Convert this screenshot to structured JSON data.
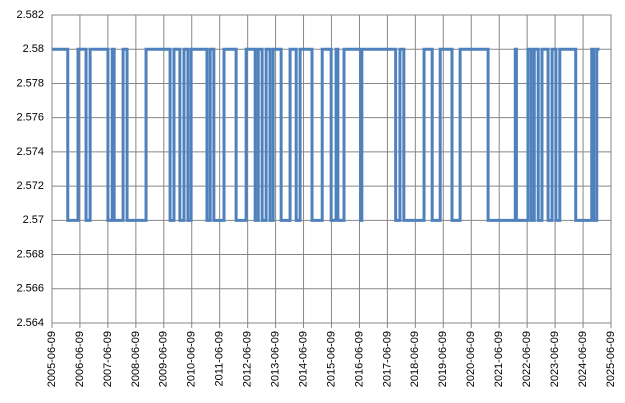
{
  "chart_data": {
    "type": "line",
    "color": "#4f81bd",
    "grid": true,
    "x": [
      "2005-06-09",
      "2006-01-01",
      "2006-01-01",
      "2006-05-15",
      "2006-05-15",
      "2006-08-28",
      "2006-08-28",
      "2006-10-20",
      "2006-10-20",
      "2007-06-10",
      "2007-06-10",
      "2007-08-05",
      "2007-08-05",
      "2007-08-30",
      "2007-08-30",
      "2007-12-25",
      "2007-12-25",
      "2008-02-15",
      "2008-02-15",
      "2008-10-20",
      "2008-10-20",
      "2009-08-30",
      "2009-08-30",
      "2009-10-20",
      "2009-10-20",
      "2010-01-05",
      "2010-01-05",
      "2010-02-28",
      "2010-02-28",
      "2010-04-20",
      "2010-04-20",
      "2010-06-01",
      "2010-06-01",
      "2010-12-25",
      "2010-12-25",
      "2011-02-05",
      "2011-02-05",
      "2011-03-25",
      "2011-03-25",
      "2011-08-05",
      "2011-08-05",
      "2012-01-10",
      "2012-01-10",
      "2012-05-20",
      "2012-05-20",
      "2012-09-15",
      "2012-09-15",
      "2012-10-25",
      "2012-10-25",
      "2012-12-15",
      "2012-12-15",
      "2013-02-05",
      "2013-02-05",
      "2013-03-28",
      "2013-03-28",
      "2013-05-08",
      "2013-05-08",
      "2013-08-20",
      "2013-08-20",
      "2013-12-15",
      "2013-12-15",
      "2014-03-05",
      "2014-03-05",
      "2014-04-25",
      "2014-04-25",
      "2014-09-28",
      "2014-09-28",
      "2015-02-08",
      "2015-02-08",
      "2015-06-05",
      "2015-06-05",
      "2015-08-08",
      "2015-08-08",
      "2015-09-01",
      "2015-09-01",
      "2015-11-20",
      "2015-11-20",
      "2016-06-25",
      "2016-06-25",
      "2016-07-10",
      "2016-07-10",
      "2017-09-25",
      "2017-09-25",
      "2017-11-20",
      "2017-11-20",
      "2018-01-10",
      "2018-01-10",
      "2018-10-01",
      "2018-10-01",
      "2019-01-15",
      "2019-01-15",
      "2019-04-30",
      "2019-04-30",
      "2019-10-01",
      "2019-10-01",
      "2020-01-15",
      "2020-01-15",
      "2021-01-15",
      "2021-01-15",
      "2022-01-05",
      "2022-01-05",
      "2022-01-20",
      "2022-01-20",
      "2022-06-20",
      "2022-06-20",
      "2022-08-01",
      "2022-08-01",
      "2022-09-10",
      "2022-09-10",
      "2022-11-01",
      "2022-11-01",
      "2022-12-20",
      "2022-12-20",
      "2023-03-10",
      "2023-03-10",
      "2023-05-01",
      "2023-05-01",
      "2023-06-20",
      "2023-06-20",
      "2023-08-10",
      "2023-08-10",
      "2024-03-05",
      "2024-03-05",
      "2024-09-30",
      "2024-09-30",
      "2024-10-25",
      "2024-10-25",
      "2024-12-05",
      "2024-12-05",
      "2025-01-10"
    ],
    "values": [
      2.58,
      2.58,
      2.57,
      2.57,
      2.58,
      2.58,
      2.57,
      2.57,
      2.58,
      2.58,
      2.57,
      2.57,
      2.58,
      2.58,
      2.57,
      2.57,
      2.58,
      2.58,
      2.57,
      2.57,
      2.58,
      2.58,
      2.57,
      2.57,
      2.58,
      2.58,
      2.57,
      2.57,
      2.58,
      2.58,
      2.57,
      2.57,
      2.58,
      2.58,
      2.57,
      2.57,
      2.58,
      2.58,
      2.57,
      2.57,
      2.58,
      2.58,
      2.57,
      2.57,
      2.58,
      2.58,
      2.57,
      2.57,
      2.58,
      2.58,
      2.57,
      2.57,
      2.58,
      2.58,
      2.57,
      2.57,
      2.58,
      2.58,
      2.57,
      2.57,
      2.58,
      2.58,
      2.57,
      2.57,
      2.58,
      2.58,
      2.57,
      2.57,
      2.58,
      2.58,
      2.57,
      2.57,
      2.58,
      2.58,
      2.57,
      2.57,
      2.58,
      2.58,
      2.57,
      2.57,
      2.58,
      2.58,
      2.57,
      2.57,
      2.58,
      2.58,
      2.57,
      2.57,
      2.58,
      2.58,
      2.57,
      2.57,
      2.58,
      2.58,
      2.57,
      2.57,
      2.58,
      2.58,
      2.57,
      2.57,
      2.58,
      2.58,
      2.57,
      2.57,
      2.58,
      2.58,
      2.57,
      2.57,
      2.58,
      2.58,
      2.57,
      2.57,
      2.58,
      2.58,
      2.57,
      2.57,
      2.58,
      2.58,
      2.57,
      2.57,
      2.58,
      2.58,
      2.57,
      2.57,
      2.58,
      2.58,
      2.57,
      2.57,
      2.58,
      2.58
    ],
    "xlim": [
      "2005-06-09",
      "2025-06-09"
    ],
    "xticks": [
      "2005-06-09",
      "2006-06-09",
      "2007-06-09",
      "2008-06-09",
      "2009-06-09",
      "2010-06-09",
      "2011-06-09",
      "2012-06-09",
      "2013-06-09",
      "2014-06-09",
      "2015-06-09",
      "2016-06-09",
      "2017-06-09",
      "2018-06-09",
      "2019-06-09",
      "2020-06-09",
      "2021-06-09",
      "2022-06-09",
      "2023-06-09",
      "2024-06-09",
      "2025-06-09"
    ],
    "ylim": [
      2.564,
      2.582
    ],
    "yticks": [
      2.564,
      2.566,
      2.568,
      2.57,
      2.572,
      2.574,
      2.576,
      2.578,
      2.58,
      2.582
    ]
  }
}
